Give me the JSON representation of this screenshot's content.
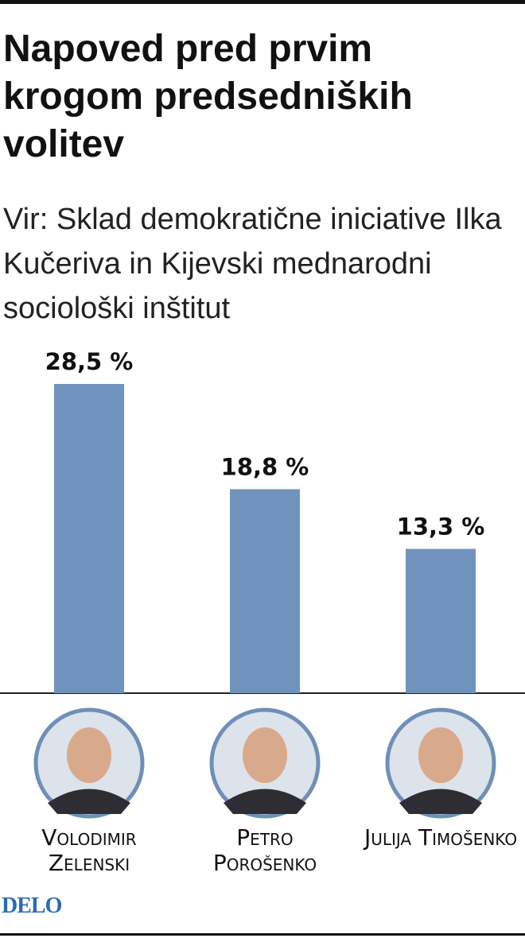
{
  "chart_data": {
    "type": "bar",
    "title": "Napoved pred prvim krogom predsedniških volitev",
    "subtitle": "Vir: Sklad demokratične iniciative Ilka Kučeriva in Kijevski mednarodni sociološki inštitut",
    "categories": [
      "Volodimir Zelenski",
      "Petro Porošenko",
      "Julija Timošenko"
    ],
    "values": [
      28.5,
      18.8,
      13.3
    ],
    "value_labels": [
      "28,5 %",
      "18,8 %",
      "13,3 %"
    ],
    "color": "#7094bd",
    "logo": "DELO"
  }
}
